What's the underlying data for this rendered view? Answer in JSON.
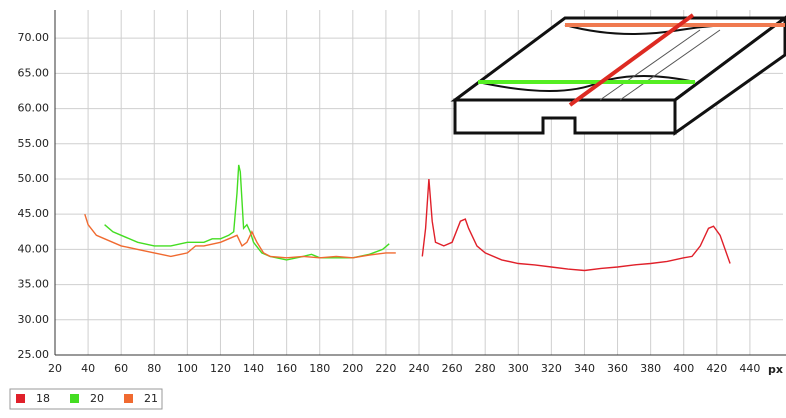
{
  "chart_data": {
    "type": "line",
    "xlabel": "px",
    "xlim": [
      20,
      460
    ],
    "xticks": [
      20,
      40,
      60,
      80,
      100,
      120,
      140,
      160,
      180,
      200,
      220,
      240,
      260,
      280,
      300,
      320,
      340,
      360,
      380,
      400,
      420,
      440
    ],
    "ylim": [
      25,
      74
    ],
    "yticks": [
      {
        "value": 25,
        "label": "25.00"
      },
      {
        "value": 30,
        "label": "30.00"
      },
      {
        "value": 35,
        "label": "35.00"
      },
      {
        "value": 40,
        "label": "40.00"
      },
      {
        "value": 45,
        "label": "45.00"
      },
      {
        "value": 50,
        "label": "50.00"
      },
      {
        "value": 55,
        "label": "55.00"
      },
      {
        "value": 60,
        "label": "60.00"
      },
      {
        "value": 65,
        "label": "65.00"
      },
      {
        "value": 70,
        "label": "70.00"
      }
    ],
    "grid": true,
    "legend": "bottom-left",
    "series": [
      {
        "name": "18",
        "color": "#e0202a",
        "x": [
          242,
          244,
          246,
          248,
          250,
          255,
          260,
          265,
          268,
          270,
          275,
          280,
          290,
          300,
          310,
          320,
          330,
          340,
          350,
          360,
          370,
          380,
          390,
          400,
          405,
          410,
          415,
          418,
          422,
          425,
          428
        ],
        "values": [
          39,
          43,
          50,
          44,
          41,
          40.5,
          41,
          44,
          44.3,
          43,
          40.5,
          39.5,
          38.5,
          38,
          37.8,
          37.5,
          37.2,
          37,
          37.3,
          37.5,
          37.8,
          38,
          38.3,
          38.8,
          39,
          40.5,
          43,
          43.3,
          42,
          40,
          38
        ]
      },
      {
        "name": "20",
        "color": "#44dd22",
        "x": [
          50,
          55,
          60,
          70,
          80,
          90,
          100,
          110,
          115,
          120,
          125,
          128,
          130,
          131,
          132,
          134,
          136,
          138,
          140,
          145,
          150,
          160,
          170,
          175,
          180,
          190,
          200,
          210,
          218,
          222
        ],
        "values": [
          43.5,
          42.5,
          42,
          41,
          40.5,
          40.5,
          41,
          41,
          41.5,
          41.5,
          42,
          42.5,
          48,
          52,
          51,
          43,
          43.5,
          42.5,
          41,
          39.5,
          39,
          38.5,
          39,
          39.3,
          38.8,
          38.8,
          38.8,
          39.3,
          40,
          40.8
        ]
      },
      {
        "name": "21",
        "color": "#f06a30",
        "x": [
          38,
          40,
          45,
          50,
          60,
          70,
          80,
          90,
          100,
          105,
          110,
          120,
          125,
          130,
          133,
          136,
          139,
          142,
          146,
          150,
          160,
          170,
          180,
          190,
          200,
          210,
          220,
          226
        ],
        "values": [
          45,
          43.5,
          42,
          41.5,
          40.5,
          40,
          39.5,
          39,
          39.5,
          40.5,
          40.5,
          41,
          41.5,
          42,
          40.5,
          41,
          42.5,
          41,
          39.5,
          39,
          38.8,
          39,
          38.8,
          39,
          38.8,
          39.2,
          39.5,
          39.5
        ]
      }
    ]
  }
}
